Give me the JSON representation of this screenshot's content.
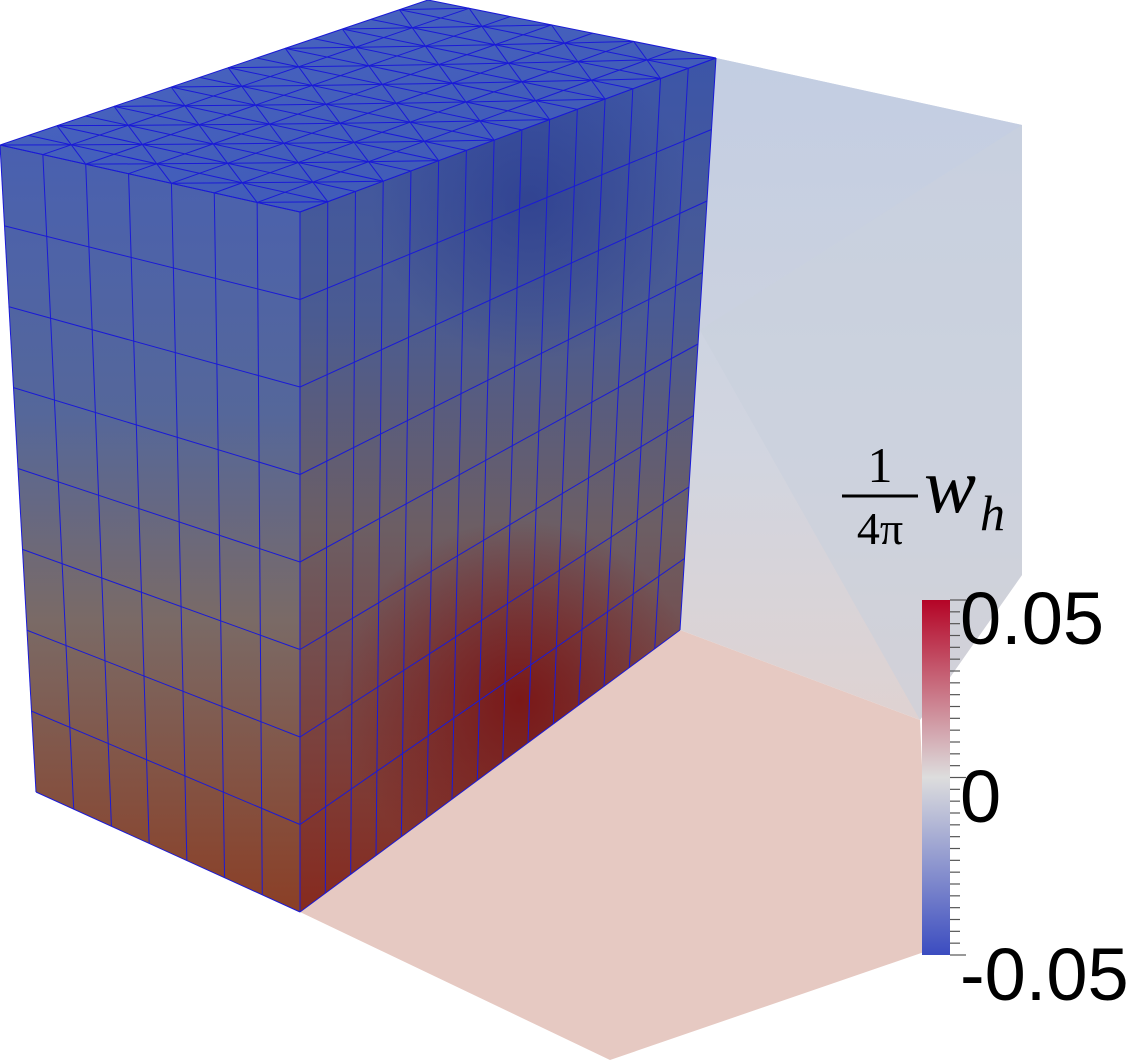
{
  "figure": {
    "field_label": {
      "numerator": "1",
      "denominator": "4π",
      "symbol": "w",
      "subscript": "h"
    },
    "colorbar": {
      "max_label": "0.05",
      "mid_label": "0",
      "min_label": "-0.05",
      "range": [
        -0.05,
        0.05
      ],
      "colormap": "cool-to-warm",
      "colors": {
        "low": "#3b4cc0",
        "mid": "#dddddd",
        "high": "#b40426"
      }
    },
    "mesh": {
      "columns_front": 7,
      "columns_side": 15,
      "rows": 8,
      "edge_color": "#1a1ad6"
    },
    "domain_box": {
      "style": "translucent",
      "floor_color": "#e6c9c2",
      "wall_color": "#c6cfe0"
    }
  }
}
